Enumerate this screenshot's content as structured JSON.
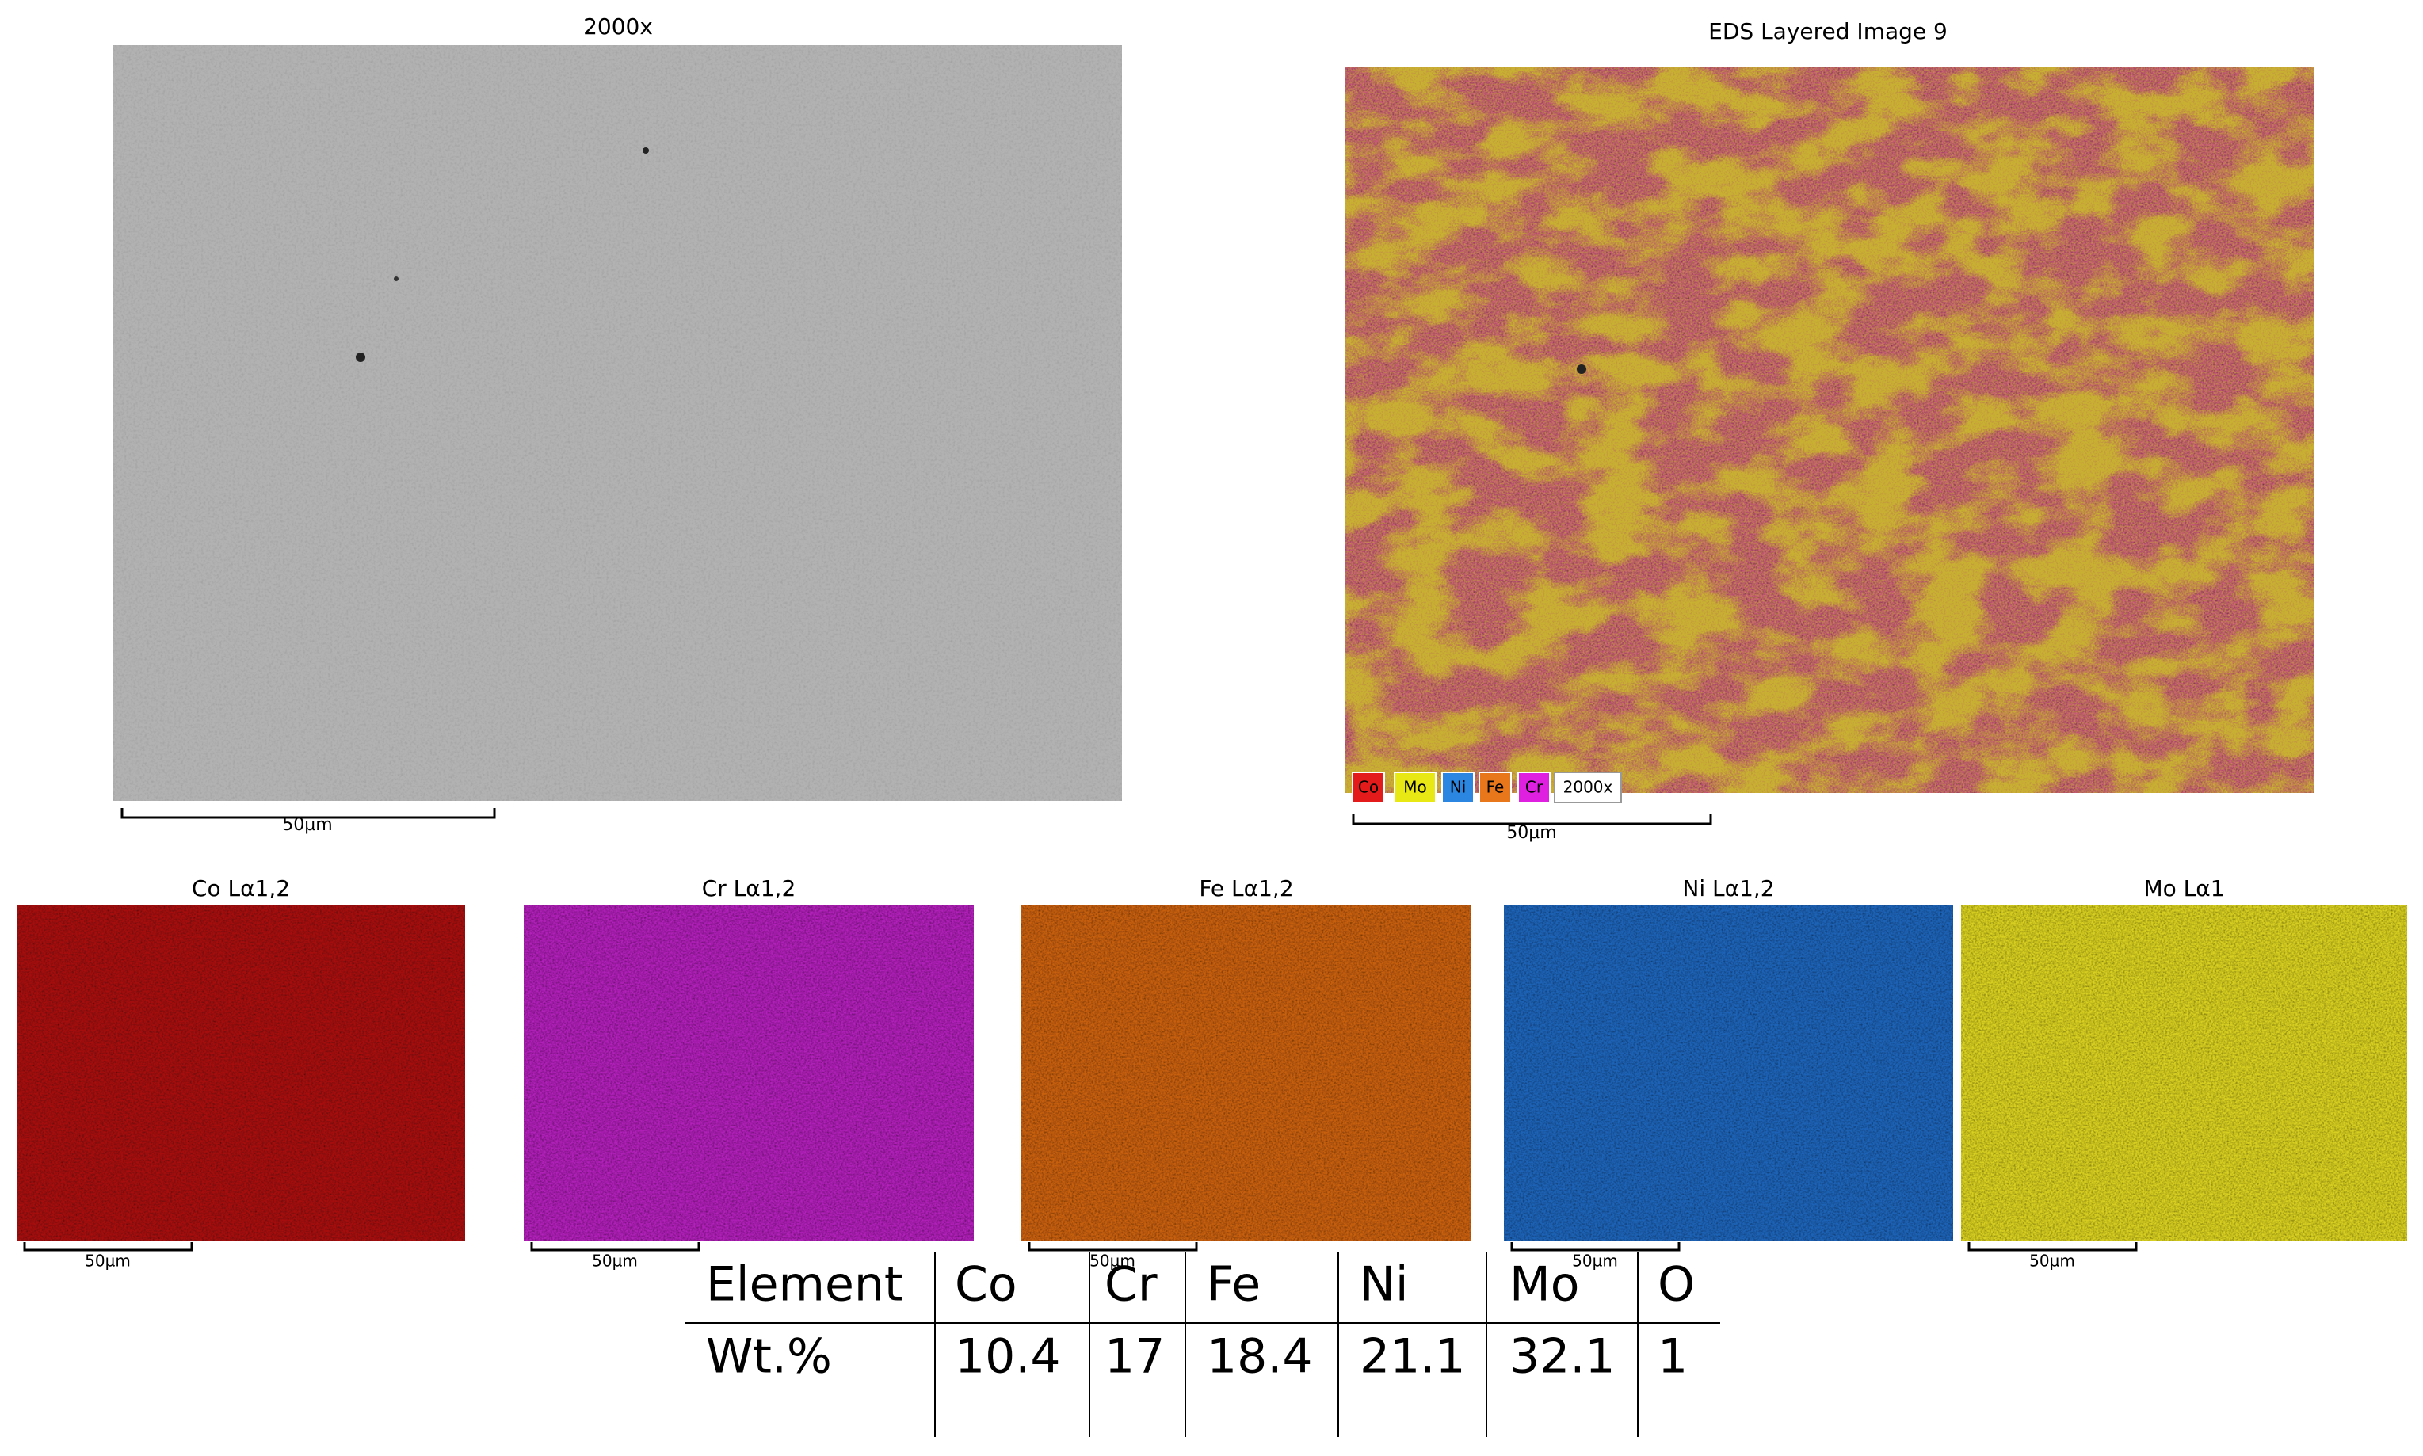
{
  "sem_image": {
    "title": "2000x",
    "scale_bar": "50µm"
  },
  "eds_layered_image": {
    "title": "EDS Layered Image 9",
    "legend": [
      "Co",
      "Mo",
      "Ni",
      "Fe",
      "Cr"
    ],
    "magnification": "2000x",
    "scale_bar": "50µm"
  },
  "element_maps": [
    {
      "title": "Co Lα1,2",
      "scale_bar": "50µm"
    },
    {
      "title": "Cr Lα1,2",
      "scale_bar": "50µm"
    },
    {
      "title": "Fe Lα1,2",
      "scale_bar": "50µm"
    },
    {
      "title": "Ni Lα1,2",
      "scale_bar": "50µm"
    },
    {
      "title": "Mo Lα1",
      "scale_bar": "50µm"
    }
  ],
  "table": {
    "header": [
      "Element",
      "Co",
      "Cr",
      "Fe",
      "Ni",
      "Mo",
      "O"
    ],
    "rows": [
      [
        "Wt.%",
        10.4,
        17,
        18.4,
        21.1,
        32.1,
        1
      ]
    ]
  }
}
